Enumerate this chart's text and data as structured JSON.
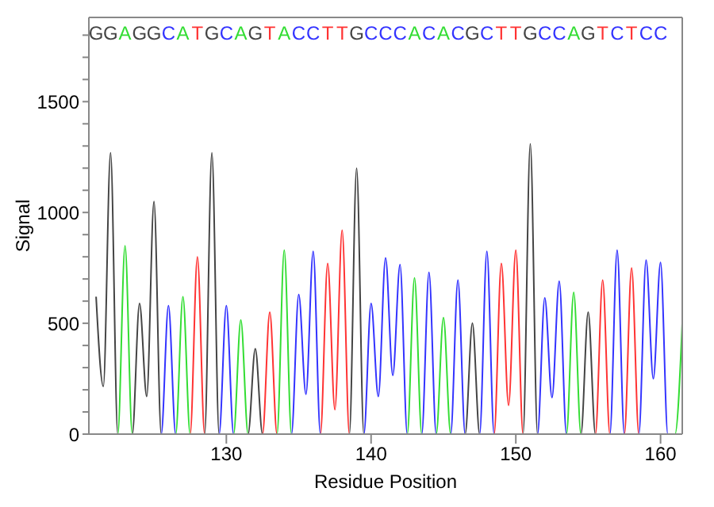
{
  "chart_data": {
    "type": "line",
    "xlabel": "Residue Position",
    "ylabel": "Signal",
    "xlim": [
      120.5,
      161.5
    ],
    "xticks": [
      130,
      140,
      150,
      160
    ],
    "ylim": [
      0,
      1880
    ],
    "yticks": [
      0,
      {
        "value": 100,
        "label": null
      },
      {
        "value": 200,
        "label": null
      },
      {
        "value": 300,
        "label": null
      },
      {
        "value": 400,
        "label": null
      },
      500,
      {
        "value": 600,
        "label": null
      },
      {
        "value": 700,
        "label": null
      },
      {
        "value": 800,
        "label": null
      },
      {
        "value": 900,
        "label": null
      },
      1000,
      {
        "value": 1100,
        "label": null
      },
      {
        "value": 1200,
        "label": null
      },
      {
        "value": 1300,
        "label": null
      },
      {
        "value": 1400,
        "label": null
      },
      1500,
      {
        "value": 1600,
        "label": null
      },
      {
        "value": 1700,
        "label": null
      },
      {
        "value": 1800,
        "label": null
      }
    ],
    "legend": false,
    "marker": "none",
    "line_style": "solid",
    "series": [
      {
        "color": "#444444",
        "x": [
          121,
          121.5,
          122,
          122.5,
          123.5,
          124,
          124.5,
          125,
          125.5,
          128.5,
          129,
          129.5,
          131.5,
          132,
          132.5,
          138.5,
          139,
          139.5,
          146.5,
          147,
          147.5,
          150.5,
          151,
          151.5,
          154.5,
          155,
          155.5,
          161.5
        ],
        "values": [
          620,
          215,
          1270,
          0,
          0,
          590,
          170,
          1050,
          0,
          0,
          1270,
          0,
          0,
          385,
          0,
          0,
          1200,
          0,
          0,
          500,
          0,
          0,
          1310,
          0,
          0,
          550,
          0,
          0
        ]
      },
      {
        "color": "#33dd33",
        "x": [
          121,
          122.5,
          123,
          123.5,
          126.5,
          127,
          127.5,
          130.5,
          131,
          131.5,
          133.5,
          134,
          134.5,
          142.5,
          143,
          143.5,
          144.5,
          145,
          145.5,
          153.5,
          154,
          154.5,
          161,
          161.5
        ],
        "values": [
          0,
          0,
          850,
          0,
          0,
          620,
          0,
          0,
          515,
          0,
          0,
          830,
          0,
          0,
          705,
          0,
          0,
          525,
          0,
          0,
          640,
          0,
          0,
          500
        ]
      },
      {
        "color": "#3333ff",
        "x": [
          121,
          125.5,
          126,
          126.5,
          129.5,
          130,
          130.5,
          134.5,
          135,
          135.5,
          136,
          136.5,
          139.5,
          140,
          140.5,
          141,
          141.5,
          142,
          142.5,
          143.5,
          144,
          144.5,
          145.5,
          146,
          146.5,
          147.5,
          148,
          148.5,
          151.5,
          152,
          152.5,
          153,
          153.5,
          156.5,
          157,
          157.5,
          158.5,
          159,
          159.5,
          160,
          160.5,
          161.5
        ],
        "values": [
          0,
          0,
          580,
          0,
          0,
          580,
          0,
          0,
          630,
          180,
          825,
          0,
          0,
          590,
          170,
          795,
          265,
          765,
          0,
          0,
          730,
          0,
          0,
          695,
          0,
          0,
          825,
          0,
          0,
          615,
          165,
          690,
          0,
          0,
          830,
          0,
          0,
          785,
          250,
          775,
          0,
          0
        ]
      },
      {
        "color": "#ff3333",
        "x": [
          121,
          127.5,
          128,
          128.5,
          132.5,
          133,
          133.5,
          136.5,
          137,
          137.5,
          138,
          138.5,
          148.5,
          149,
          149.5,
          150,
          150.5,
          155.5,
          156,
          156.5,
          157.5,
          158,
          158.5,
          161.5
        ],
        "values": [
          0,
          0,
          800,
          0,
          0,
          550,
          0,
          0,
          770,
          110,
          920,
          0,
          0,
          770,
          130,
          830,
          0,
          0,
          695,
          0,
          0,
          750,
          0,
          0
        ]
      }
    ],
    "annotations": [
      "G",
      "G",
      "A",
      "G",
      "G",
      "C",
      "A",
      "T",
      "G",
      "C",
      "A",
      "G",
      "T",
      "A",
      "C",
      "C",
      "T",
      "T",
      "G",
      "C",
      "C",
      "C",
      "A",
      "C",
      "A",
      "C",
      "G",
      "C",
      "T",
      "T",
      "G",
      "C",
      "C",
      "A",
      "G",
      "T",
      "C",
      "T",
      "C",
      "C"
    ]
  }
}
